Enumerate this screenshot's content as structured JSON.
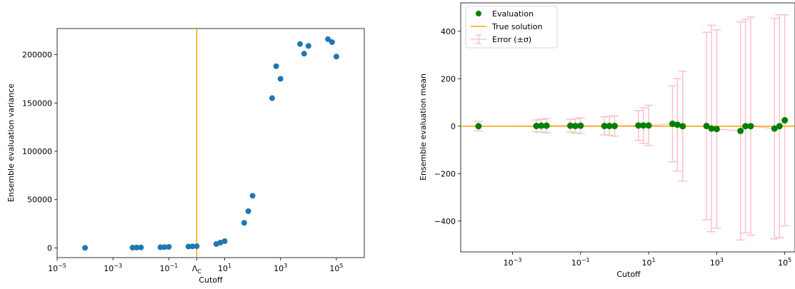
{
  "chart_data": [
    {
      "type": "scatter",
      "xlabel": "Cutoff",
      "ylabel": "Ensemble evaluation variance",
      "xscale": "log",
      "xlim": [
        1e-05,
        1000000
      ],
      "ylim": [
        -10000,
        227000
      ],
      "x_ticks": [
        {
          "value": 1e-05,
          "base": "10",
          "exp": "−5"
        },
        {
          "value": 0.001,
          "base": "10",
          "exp": "−3"
        },
        {
          "value": 0.1,
          "base": "10",
          "exp": "−1"
        },
        {
          "value": 10,
          "base": "10",
          "exp": "1"
        },
        {
          "value": 1000,
          "base": "10",
          "exp": "3"
        },
        {
          "value": 100000,
          "base": "10",
          "exp": "5"
        }
      ],
      "y_ticks": [
        0,
        50000,
        100000,
        150000,
        200000
      ],
      "y_tick_labels": [
        "0",
        "50000",
        "100000",
        "150000",
        "200000"
      ],
      "vline": {
        "x": 1,
        "label": "Λ",
        "label_sub": "C",
        "color": "#ffa500"
      },
      "point_color": "#1f77b4",
      "points": [
        [
          0.0001,
          100
        ],
        [
          0.005,
          300
        ],
        [
          0.007,
          400
        ],
        [
          0.01,
          500
        ],
        [
          0.05,
          700
        ],
        [
          0.07,
          900
        ],
        [
          0.1,
          1100
        ],
        [
          0.5,
          1400
        ],
        [
          0.7,
          1600
        ],
        [
          1.0,
          1800
        ],
        [
          5,
          4000
        ],
        [
          7,
          5500
        ],
        [
          10,
          7000
        ],
        [
          50,
          26000
        ],
        [
          70,
          38000
        ],
        [
          100,
          54000
        ],
        [
          500,
          155000
        ],
        [
          700,
          188000
        ],
        [
          1000,
          175000
        ],
        [
          5000,
          211000
        ],
        [
          7000,
          201000
        ],
        [
          10000,
          209000
        ],
        [
          50000,
          216000
        ],
        [
          70000,
          213000
        ],
        [
          100000,
          198000
        ]
      ]
    },
    {
      "type": "scatter",
      "xlabel": "Cutoff",
      "ylabel": "Ensemble evaluation mean",
      "xscale": "log",
      "xlim": [
        3e-05,
        200000
      ],
      "ylim": [
        -530,
        520
      ],
      "x_ticks": [
        {
          "value": 0.001,
          "base": "10",
          "exp": "−3"
        },
        {
          "value": 0.1,
          "base": "10",
          "exp": "−1"
        },
        {
          "value": 10,
          "base": "10",
          "exp": "1"
        },
        {
          "value": 1000,
          "base": "10",
          "exp": "3"
        },
        {
          "value": 100000,
          "base": "10",
          "exp": "5"
        }
      ],
      "y_ticks": [
        -400,
        -200,
        0,
        200,
        400
      ],
      "y_tick_labels": [
        "−400",
        "−200",
        "0",
        "200",
        "400"
      ],
      "true_solution": 0,
      "colors": {
        "evaluation": "#008000",
        "true_solution": "#ffa500",
        "error": "#ffc0cb"
      },
      "legend": {
        "position": "top-left",
        "entries": [
          {
            "kind": "evaluation",
            "label": "Evaluation"
          },
          {
            "kind": "true",
            "label": "True solution"
          },
          {
            "kind": "error",
            "label": "Error (±σ)"
          }
        ]
      },
      "points": [
        {
          "x": 0.0001,
          "mean": 0,
          "err": 20
        },
        {
          "x": 0.005,
          "mean": 1,
          "err": 25
        },
        {
          "x": 0.007,
          "mean": 2,
          "err": 27
        },
        {
          "x": 0.01,
          "mean": 2,
          "err": 30
        },
        {
          "x": 0.05,
          "mean": 2,
          "err": 27
        },
        {
          "x": 0.07,
          "mean": 1,
          "err": 30
        },
        {
          "x": 0.1,
          "mean": 2,
          "err": 33
        },
        {
          "x": 0.5,
          "mean": 1,
          "err": 38
        },
        {
          "x": 0.7,
          "mean": 1,
          "err": 40
        },
        {
          "x": 1.0,
          "mean": 1,
          "err": 43
        },
        {
          "x": 5,
          "mean": 3,
          "err": 63
        },
        {
          "x": 7,
          "mean": 3,
          "err": 75
        },
        {
          "x": 10,
          "mean": 3,
          "err": 85
        },
        {
          "x": 50,
          "mean": 10,
          "err": 160
        },
        {
          "x": 70,
          "mean": 6,
          "err": 195
        },
        {
          "x": 100,
          "mean": 0,
          "err": 232
        },
        {
          "x": 500,
          "mean": 1,
          "err": 395
        },
        {
          "x": 700,
          "mean": -10,
          "err": 435
        },
        {
          "x": 1000,
          "mean": -12,
          "err": 418
        },
        {
          "x": 5000,
          "mean": -20,
          "err": 460
        },
        {
          "x": 7000,
          "mean": 0,
          "err": 450
        },
        {
          "x": 10000,
          "mean": 0,
          "err": 460
        },
        {
          "x": 50000,
          "mean": -10,
          "err": 465
        },
        {
          "x": 70000,
          "mean": 0,
          "err": 470
        },
        {
          "x": 100000,
          "mean": 25,
          "err": 445
        }
      ]
    }
  ]
}
